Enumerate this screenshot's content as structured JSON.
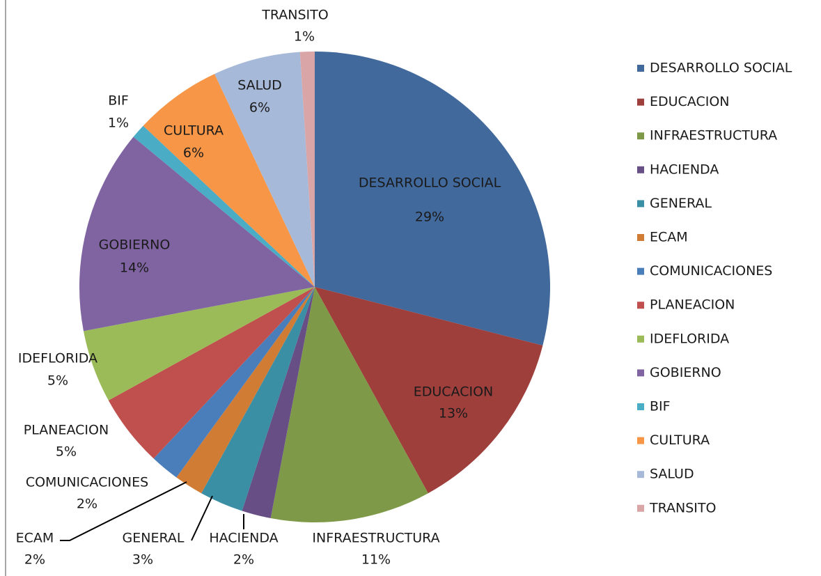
{
  "chart_data": {
    "type": "pie",
    "categories": [
      "DESARROLLO SOCIAL",
      "EDUCACION",
      "INFRAESTRUCTURA",
      "HACIENDA",
      "GENERAL",
      "ECAM",
      "COMUNICACIONES",
      "PLANEACION",
      "IDEFLORIDA",
      "GOBIERNO",
      "BIF",
      "CULTURA",
      "SALUD",
      "TRANSITO"
    ],
    "values": [
      29,
      13,
      11,
      2,
      3,
      2,
      2,
      5,
      5,
      14,
      1,
      6,
      6,
      1
    ],
    "value_labels": [
      "29%",
      "13%",
      "11%",
      "2%",
      "3%",
      "2%",
      "2%",
      "5%",
      "5%",
      "14%",
      "1%",
      "6%",
      "6%",
      "1%"
    ],
    "colors": [
      "#41699c",
      "#9e3f3c",
      "#7e9a48",
      "#674f86",
      "#3a8fa4",
      "#d07c35",
      "#4a7ebb",
      "#c0504d",
      "#9bbb59",
      "#8064a2",
      "#4bacc6",
      "#f79646",
      "#a7b9d9",
      "#d9a5a6"
    ],
    "legend": "right"
  }
}
